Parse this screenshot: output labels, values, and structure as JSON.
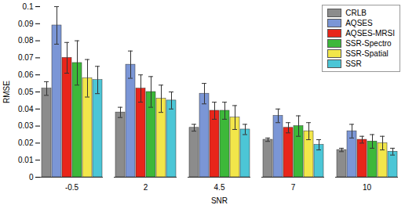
{
  "chart_data": {
    "type": "bar",
    "x_label": "SNR",
    "y_label": "RMSE",
    "categories": [
      "-0.5",
      "2",
      "4.5",
      "7",
      "10"
    ],
    "series": [
      {
        "name": "CRLB",
        "color": "#8c8c8c",
        "values": [
          0.052,
          0.038,
          0.029,
          0.022,
          0.016
        ],
        "errors": [
          0.004,
          0.003,
          0.002,
          0.001,
          0.001
        ]
      },
      {
        "name": "AQSES",
        "color": "#7b96d6",
        "values": [
          0.089,
          0.066,
          0.049,
          0.036,
          0.027
        ],
        "errors": [
          0.011,
          0.008,
          0.006,
          0.004,
          0.004
        ]
      },
      {
        "name": "AQSES-MRSI",
        "color": "#e8251a",
        "values": [
          0.07,
          0.052,
          0.039,
          0.029,
          0.022
        ],
        "errors": [
          0.009,
          0.008,
          0.005,
          0.003,
          0.002
        ]
      },
      {
        "name": "SSR-Spectro",
        "color": "#3db83a",
        "values": [
          0.067,
          0.05,
          0.039,
          0.03,
          0.021
        ],
        "errors": [
          0.013,
          0.009,
          0.005,
          0.006,
          0.004
        ]
      },
      {
        "name": "SSR-Spatial",
        "color": "#f2e64a",
        "values": [
          0.058,
          0.046,
          0.035,
          0.027,
          0.02
        ],
        "errors": [
          0.011,
          0.008,
          0.007,
          0.005,
          0.004
        ]
      },
      {
        "name": "SSR",
        "color": "#4cc6d6",
        "values": [
          0.057,
          0.045,
          0.028,
          0.019,
          0.015
        ],
        "errors": [
          0.008,
          0.005,
          0.003,
          0.003,
          0.002
        ]
      }
    ],
    "ylim": [
      0,
      0.1
    ],
    "yticks": [
      0,
      0.01,
      0.02,
      0.03,
      0.04,
      0.05,
      0.06,
      0.07,
      0.08,
      0.09,
      0.1
    ],
    "legend": "top-right",
    "grid": false
  }
}
